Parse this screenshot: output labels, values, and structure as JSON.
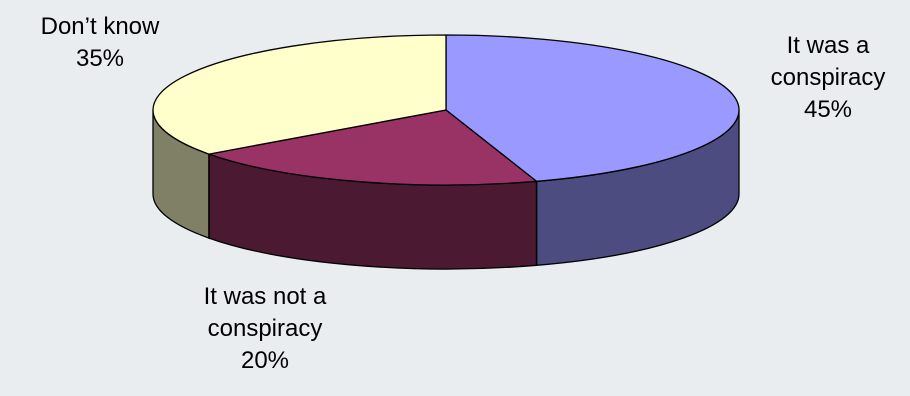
{
  "chart_data": {
    "type": "pie",
    "style": "3d",
    "legend": "none",
    "slices": [
      {
        "label_lines": [
          "It was a",
          "conspiracy"
        ],
        "value": 45,
        "value_label": "45%",
        "top_color": "#9999ff",
        "side_color": "#4c4c80"
      },
      {
        "label_lines": [
          "It was not a",
          "conspiracy"
        ],
        "value": 20,
        "value_label": "20%",
        "top_color": "#993366",
        "side_color": "#4c1933"
      },
      {
        "label_lines": [
          "Don’t know"
        ],
        "value": 35,
        "value_label": "35%",
        "top_color": "#ffffcc",
        "side_color": "#808066"
      }
    ]
  }
}
